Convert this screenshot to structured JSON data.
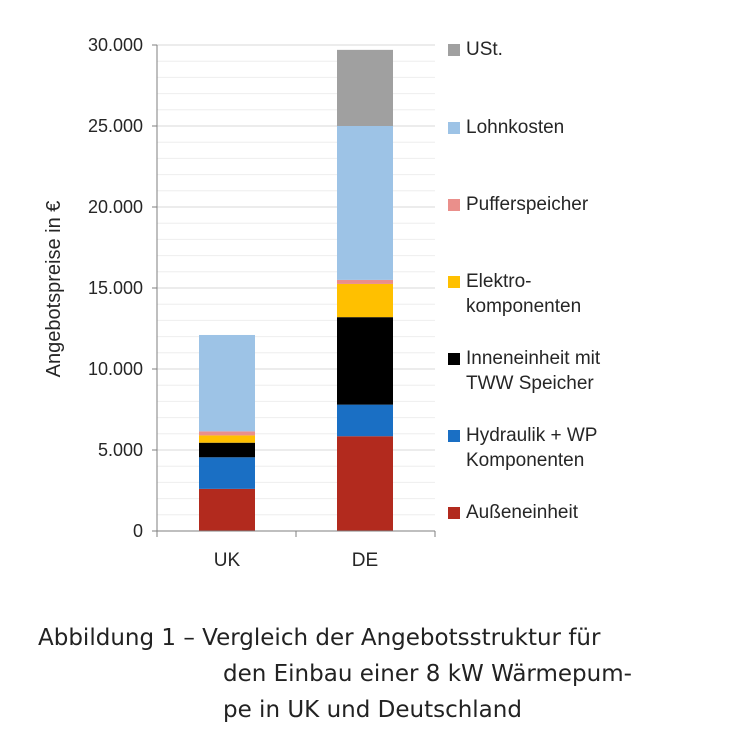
{
  "chart_data": {
    "type": "bar",
    "stacked": true,
    "categories": [
      "UK",
      "DE"
    ],
    "ylabel": "Angebotspreise in €",
    "ylim": [
      0,
      30000
    ],
    "yticks": [
      0,
      5000,
      10000,
      15000,
      20000,
      25000,
      30000
    ],
    "ytick_labels": [
      "0",
      "5.000",
      "10.000",
      "15.000",
      "20.000",
      "25.000",
      "30.000"
    ],
    "legend_position": "right",
    "series": [
      {
        "name": "Außeneinheit",
        "legend_lines": [
          "Außeneinheit"
        ],
        "color": "#b22a1e",
        "values": [
          2600,
          5850
        ]
      },
      {
        "name": "Hydraulik + WP Komponenten",
        "legend_lines": [
          "Hydraulik + WP",
          "Komponenten"
        ],
        "color": "#1a6fc4",
        "values": [
          1950,
          1950
        ]
      },
      {
        "name": "Inneneinheit mit TWW Speicher",
        "legend_lines": [
          "Inneneinheit mit",
          "TWW Speicher"
        ],
        "color": "#000000",
        "values": [
          900,
          5400
        ]
      },
      {
        "name": "Elektro-komponenten",
        "legend_lines": [
          "Elektro-",
          "komponenten"
        ],
        "color": "#ffc000",
        "values": [
          450,
          2050
        ]
      },
      {
        "name": "Pufferspeicher",
        "legend_lines": [
          "Pufferspeicher"
        ],
        "color": "#ea8f8b",
        "values": [
          250,
          250
        ]
      },
      {
        "name": "Lohnkosten",
        "legend_lines": [
          "Lohnkosten"
        ],
        "color": "#9dc3e6",
        "values": [
          5950,
          9500
        ]
      },
      {
        "name": "USt.",
        "legend_lines": [
          "USt."
        ],
        "color": "#a0a0a0",
        "values": [
          0,
          4700
        ]
      }
    ]
  },
  "caption": {
    "line1": "Abbildung 1 – Vergleich der Angebotsstruktur für",
    "line2": "den Einbau einer 8 kW Wärmepum-",
    "line3": "pe in UK und Deutschland"
  }
}
